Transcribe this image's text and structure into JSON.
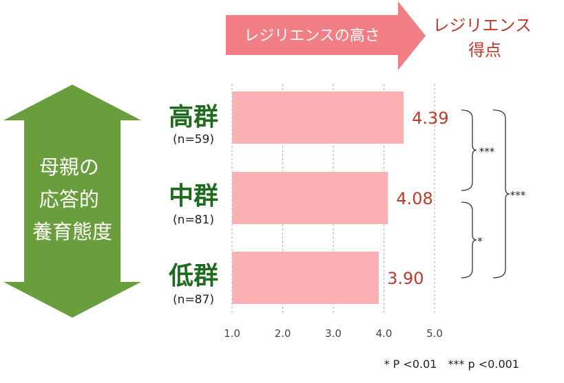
{
  "chart_data": {
    "type": "bar",
    "orientation": "horizontal",
    "categories": [
      "高群",
      "中群",
      "低群"
    ],
    "category_counts": [
      "(n=59)",
      "(n=81)",
      "(n=87)"
    ],
    "values": [
      4.39,
      4.08,
      3.9
    ],
    "value_labels": [
      "4.39",
      "4.08",
      "3.90"
    ],
    "xlim": [
      1.0,
      5.0
    ],
    "x_ticks": [
      "1.0",
      "2.0",
      "3.0",
      "4.0",
      "5.0"
    ],
    "grid": "vertical dotted",
    "axis_banner": "レジリエンスの高さ",
    "axis_title": "レジリエンス\n得点",
    "group_axis_label": "母親の\n応答的\n養育態度",
    "significance": [
      {
        "label": "***"
      },
      {
        "label": "*"
      },
      {
        "label": "***"
      }
    ],
    "footnote": "* P <0.01　*** p <0.001",
    "colors": {
      "bar": "#fbb0b3",
      "group_arrow": "#6a9e3d",
      "banner_arrow": "#f27f85",
      "value_text": "#c0392b",
      "group_text": "#1e6b1e"
    }
  }
}
